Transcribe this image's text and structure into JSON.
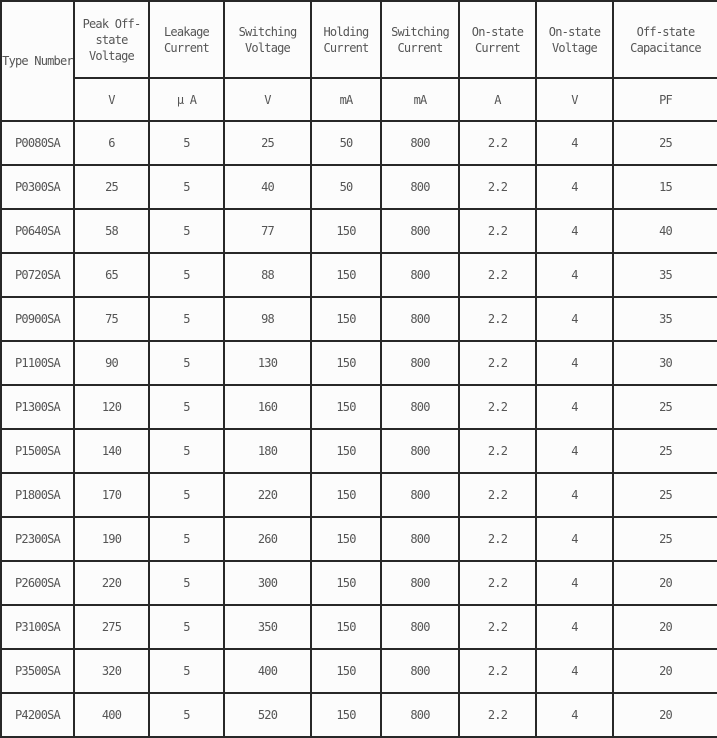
{
  "page": {
    "background_color": "#fcfcfc",
    "border_color": "#282828",
    "text_color": "#555555"
  },
  "table": {
    "header": {
      "type_column": {
        "name": "type-number",
        "label": "Type Number"
      },
      "columns": [
        {
          "name": "peak-off-state-voltage",
          "label": "Peak Off-\nstate\nVoltage",
          "unit": "V"
        },
        {
          "name": "leakage-current",
          "label": "Leakage\nCurrent",
          "unit": "μ A"
        },
        {
          "name": "switching-voltage",
          "label": "Switching\nVoltage",
          "unit": "V"
        },
        {
          "name": "holding-current",
          "label": "Holding\nCurrent",
          "unit": "mA"
        },
        {
          "name": "switching-current",
          "label": "Switching\nCurrent",
          "unit": "mA"
        },
        {
          "name": "on-state-current",
          "label": "On-state\nCurrent",
          "unit": "A"
        },
        {
          "name": "on-state-voltage",
          "label": "On-state\nVoltage",
          "unit": "V"
        },
        {
          "name": "off-state-capacitance",
          "label": "Off-state\nCapacitance",
          "unit": "PF"
        }
      ]
    },
    "rows": [
      [
        "P0080SA",
        "6",
        "5",
        "25",
        "50",
        "800",
        "2.2",
        "4",
        "25"
      ],
      [
        "P0300SA",
        "25",
        "5",
        "40",
        "50",
        "800",
        "2.2",
        "4",
        "15"
      ],
      [
        "P0640SA",
        "58",
        "5",
        "77",
        "150",
        "800",
        "2.2",
        "4",
        "40"
      ],
      [
        "P0720SA",
        "65",
        "5",
        "88",
        "150",
        "800",
        "2.2",
        "4",
        "35"
      ],
      [
        "P0900SA",
        "75",
        "5",
        "98",
        "150",
        "800",
        "2.2",
        "4",
        "35"
      ],
      [
        "P1100SA",
        "90",
        "5",
        "130",
        "150",
        "800",
        "2.2",
        "4",
        "30"
      ],
      [
        "P1300SA",
        "120",
        "5",
        "160",
        "150",
        "800",
        "2.2",
        "4",
        "25"
      ],
      [
        "P1500SA",
        "140",
        "5",
        "180",
        "150",
        "800",
        "2.2",
        "4",
        "25"
      ],
      [
        "P1800SA",
        "170",
        "5",
        "220",
        "150",
        "800",
        "2.2",
        "4",
        "25"
      ],
      [
        "P2300SA",
        "190",
        "5",
        "260",
        "150",
        "800",
        "2.2",
        "4",
        "25"
      ],
      [
        "P2600SA",
        "220",
        "5",
        "300",
        "150",
        "800",
        "2.2",
        "4",
        "20"
      ],
      [
        "P3100SA",
        "275",
        "5",
        "350",
        "150",
        "800",
        "2.2",
        "4",
        "20"
      ],
      [
        "P3500SA",
        "320",
        "5",
        "400",
        "150",
        "800",
        "2.2",
        "4",
        "20"
      ],
      [
        "P4200SA",
        "400",
        "5",
        "520",
        "150",
        "800",
        "2.2",
        "4",
        "20"
      ]
    ]
  }
}
